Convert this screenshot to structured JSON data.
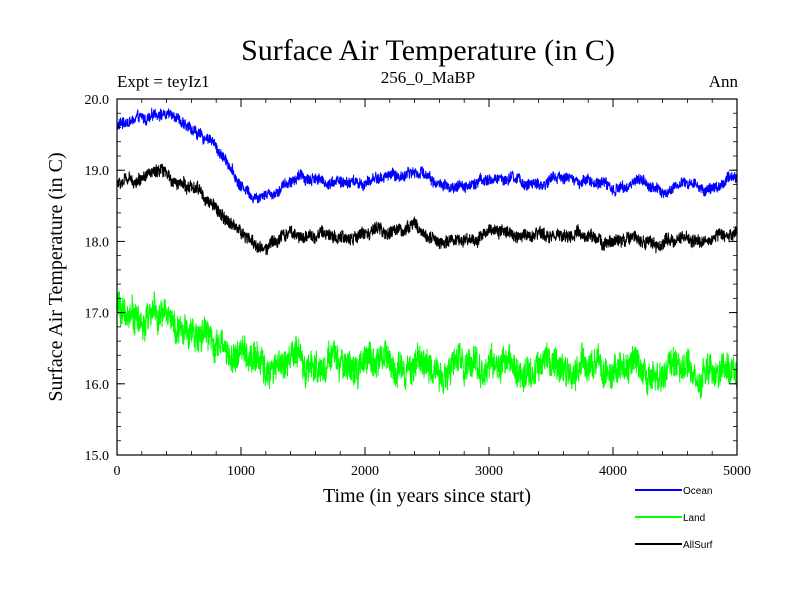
{
  "chart_data": {
    "type": "line",
    "title": "Surface Air Temperature (in C)",
    "subtitle_left": "Expt = teyIz1",
    "subtitle_center": "256_0_MaBP",
    "subtitle_right": "Ann",
    "xlabel": "Time (in years since start)",
    "ylabel": "Surface Air Temperature (in C)",
    "xlim": [
      0,
      5000
    ],
    "ylim": [
      15.0,
      20.0
    ],
    "xticks": [
      0,
      1000,
      2000,
      3000,
      4000,
      5000
    ],
    "yticks": [
      15.0,
      16.0,
      17.0,
      18.0,
      19.0,
      20.0
    ],
    "xtick_labels": [
      "0",
      "1000",
      "2000",
      "3000",
      "4000",
      "5000"
    ],
    "ytick_labels": [
      "15.0",
      "16.0",
      "17.0",
      "18.0",
      "19.0",
      "20.0"
    ],
    "grid": false,
    "legend_position": "bottom-right outside",
    "series": [
      {
        "name": "Ocean",
        "color": "#0000ff",
        "noise": 0.08,
        "x": [
          0,
          150,
          300,
          450,
          600,
          750,
          900,
          1000,
          1100,
          1200,
          1400,
          1600,
          1800,
          2000,
          2200,
          2400,
          2600,
          2800,
          3000,
          3200,
          3400,
          3600,
          3800,
          4000,
          4200,
          4400,
          4600,
          4800,
          5000
        ],
        "values": [
          19.6,
          19.7,
          19.8,
          19.75,
          19.6,
          19.4,
          19.1,
          18.8,
          18.6,
          18.65,
          18.85,
          18.9,
          18.8,
          18.85,
          18.9,
          19.0,
          18.8,
          18.75,
          18.9,
          18.85,
          18.8,
          18.9,
          18.85,
          18.75,
          18.85,
          18.7,
          18.8,
          18.75,
          18.9
        ]
      },
      {
        "name": "Land",
        "color": "#00ff00",
        "noise": 0.22,
        "x": [
          0,
          150,
          300,
          450,
          600,
          750,
          900,
          1000,
          1100,
          1200,
          1400,
          1600,
          1800,
          2000,
          2200,
          2400,
          2600,
          2800,
          3000,
          3200,
          3400,
          3600,
          3800,
          4000,
          4200,
          4400,
          4600,
          4800,
          5000
        ],
        "values": [
          17.0,
          16.95,
          16.95,
          16.85,
          16.75,
          16.6,
          16.5,
          16.4,
          16.3,
          16.25,
          16.3,
          16.3,
          16.25,
          16.3,
          16.3,
          16.25,
          16.2,
          16.25,
          16.3,
          16.2,
          16.25,
          16.2,
          16.25,
          16.2,
          16.2,
          16.15,
          16.2,
          16.15,
          16.2
        ]
      },
      {
        "name": "AllSurf",
        "color": "#000000",
        "noise": 0.09,
        "x": [
          0,
          150,
          300,
          450,
          600,
          750,
          900,
          1000,
          1100,
          1200,
          1400,
          1600,
          1800,
          2000,
          2200,
          2400,
          2600,
          2800,
          3000,
          3200,
          3400,
          3600,
          3800,
          4000,
          4200,
          4400,
          4600,
          4800,
          5000
        ],
        "values": [
          18.8,
          18.9,
          18.95,
          18.9,
          18.75,
          18.55,
          18.3,
          18.1,
          17.95,
          17.95,
          18.1,
          18.1,
          18.05,
          18.1,
          18.15,
          18.2,
          18.0,
          18.0,
          18.15,
          18.1,
          18.05,
          18.1,
          18.05,
          18.0,
          18.05,
          17.95,
          18.05,
          18.0,
          18.15
        ]
      }
    ]
  }
}
